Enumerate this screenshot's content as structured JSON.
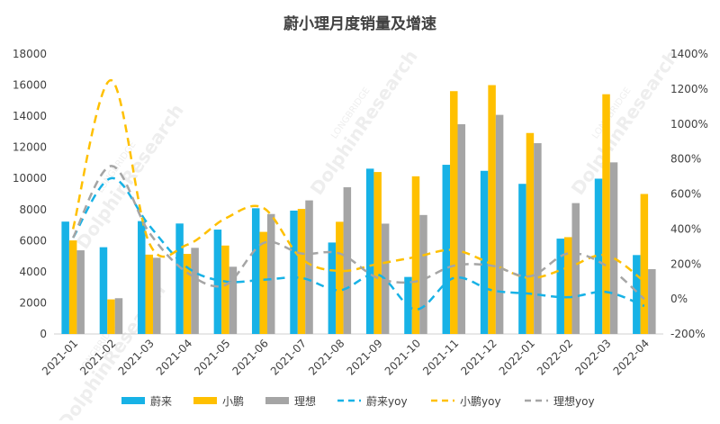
{
  "chart_data": {
    "type": "bar",
    "title": "蔚小理月度销量及增速",
    "categories": [
      "2021-01",
      "2021-02",
      "2021-03",
      "2021-04",
      "2021-05",
      "2021-06",
      "2021-07",
      "2021-08",
      "2021-09",
      "2021-10",
      "2021-11",
      "2021-12",
      "2022-01",
      "2022-02",
      "2022-03",
      "2022-04"
    ],
    "ylim": [
      0,
      18000
    ],
    "y_ticks": [
      "0",
      "2000",
      "4000",
      "6000",
      "8000",
      "10000",
      "12000",
      "14000",
      "16000",
      "18000"
    ],
    "y2lim": [
      -200,
      1400
    ],
    "y2_ticks": [
      "-200%",
      "0%",
      "200%",
      "400%",
      "600%",
      "800%",
      "1000%",
      "1200%",
      "1400%"
    ],
    "series": [
      {
        "name": "蔚来",
        "kind": "bar",
        "color": "#17b2e6",
        "values": [
          7225,
          5578,
          7257,
          7102,
          6711,
          8083,
          7931,
          5880,
          10628,
          3667,
          10878,
          10489,
          9652,
          6131,
          9985,
          5074
        ]
      },
      {
        "name": "小鹏",
        "kind": "bar",
        "color": "#ffc000",
        "values": [
          6015,
          2223,
          5102,
          5147,
          5686,
          6565,
          8040,
          7214,
          10412,
          10138,
          15613,
          16000,
          12922,
          6225,
          15414,
          9002
        ]
      },
      {
        "name": "理想",
        "kind": "bar",
        "color": "#a5a5a5",
        "values": [
          5379,
          2300,
          4900,
          5539,
          4323,
          7713,
          8589,
          9433,
          7094,
          7649,
          13485,
          14087,
          12268,
          8414,
          11034,
          4167
        ]
      },
      {
        "name": "蔚来yoy",
        "kind": "line",
        "axis": "right",
        "color": "#17b2e6",
        "values": [
          350,
          690,
          420,
          180,
          100,
          110,
          120,
          50,
          140,
          -60,
          120,
          50,
          30,
          10,
          40,
          -40
        ]
      },
      {
        "name": "小鹏yoy",
        "kind": "line",
        "axis": "right",
        "color": "#ffc000",
        "values": [
          400,
          1250,
          320,
          310,
          460,
          520,
          230,
          160,
          200,
          240,
          280,
          200,
          120,
          180,
          250,
          100
        ]
      },
      {
        "name": "理想yoy",
        "kind": "line",
        "axis": "right",
        "color": "#a5a5a5",
        "values": [
          350,
          760,
          380,
          150,
          80,
          320,
          260,
          260,
          120,
          100,
          190,
          190,
          130,
          260,
          190,
          0
        ]
      }
    ],
    "legend_position": "bottom",
    "grid": false,
    "watermark_text": [
      "LONGBRIDGE",
      "DolphinResearch"
    ]
  }
}
